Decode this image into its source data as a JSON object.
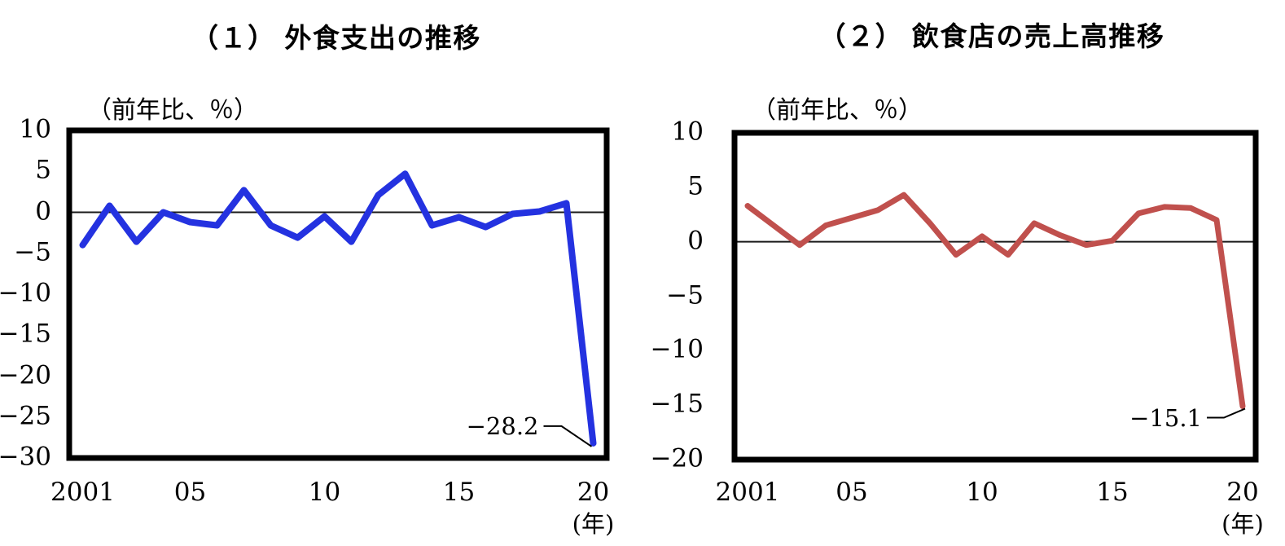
{
  "page": {
    "background": "#ffffff",
    "text_color": "#000000"
  },
  "chart_data": [
    {
      "type": "line",
      "title": "（１） 外食支出の推移",
      "units_label": "（前年比、％）",
      "legend": "none",
      "grid": "off",
      "zero_line": true,
      "ylim": [
        -30,
        10
      ],
      "x": [
        2001,
        2002,
        2003,
        2004,
        2005,
        2006,
        2007,
        2008,
        2009,
        2010,
        2011,
        2012,
        2013,
        2014,
        2015,
        2016,
        2017,
        2018,
        2019,
        2020
      ],
      "series": [
        {
          "name": "外食支出 前年比(%)",
          "color": "#2432e0",
          "values": [
            -4.0,
            0.8,
            -3.6,
            0.0,
            -1.2,
            -1.6,
            2.7,
            -1.6,
            -3.1,
            -0.5,
            -3.6,
            2.1,
            4.7,
            -1.6,
            -0.6,
            -1.8,
            -0.2,
            0.1,
            1.1,
            -28.2
          ]
        }
      ],
      "y_ticks": [
        {
          "value": 10,
          "label": "10"
        },
        {
          "value": 5,
          "label": "5"
        },
        {
          "value": 0,
          "label": "0"
        },
        {
          "value": -5,
          "label": "−5"
        },
        {
          "value": -10,
          "label": "−10"
        },
        {
          "value": -15,
          "label": "−15"
        },
        {
          "value": -20,
          "label": "−20"
        },
        {
          "value": -25,
          "label": "−25"
        },
        {
          "value": -30,
          "label": "−30"
        }
      ],
      "x_ticks": [
        {
          "year": 2001,
          "label": "2001"
        },
        {
          "year": 2005,
          "label": "05"
        },
        {
          "year": 2010,
          "label": "10"
        },
        {
          "year": 2015,
          "label": "15"
        },
        {
          "year": 2020,
          "label": "20"
        }
      ],
      "x_axis_suffix": "(年)",
      "annotation": {
        "text": "−28.2",
        "year": 2020,
        "value": -28.2
      }
    },
    {
      "type": "line",
      "title": "（２） 飲食店の売上高推移",
      "units_label": "（前年比、％）",
      "legend": "none",
      "grid": "off",
      "zero_line": true,
      "ylim": [
        -20,
        10
      ],
      "x": [
        2001,
        2002,
        2003,
        2004,
        2005,
        2006,
        2007,
        2008,
        2009,
        2010,
        2011,
        2012,
        2013,
        2014,
        2015,
        2016,
        2017,
        2018,
        2019,
        2020
      ],
      "series": [
        {
          "name": "飲食店売上高 前年比(%)",
          "color": "#c0504d",
          "values": [
            3.3,
            1.5,
            -0.3,
            1.5,
            2.2,
            2.9,
            4.3,
            1.7,
            -1.2,
            0.5,
            -1.2,
            1.7,
            0.6,
            -0.3,
            0.1,
            2.6,
            3.2,
            3.1,
            2.0,
            -15.1
          ]
        }
      ],
      "y_ticks": [
        {
          "value": 10,
          "label": "10"
        },
        {
          "value": 5,
          "label": "5"
        },
        {
          "value": 0,
          "label": "0"
        },
        {
          "value": -5,
          "label": "−5"
        },
        {
          "value": -10,
          "label": "−10"
        },
        {
          "value": -15,
          "label": "−15"
        },
        {
          "value": -20,
          "label": "−20"
        }
      ],
      "x_ticks": [
        {
          "year": 2001,
          "label": "2001"
        },
        {
          "year": 2005,
          "label": "05"
        },
        {
          "year": 2010,
          "label": "10"
        },
        {
          "year": 2015,
          "label": "15"
        },
        {
          "year": 2020,
          "label": "20"
        }
      ],
      "x_axis_suffix": "(年)",
      "annotation": {
        "text": "−15.1",
        "year": 2020,
        "value": -15.1
      }
    }
  ]
}
